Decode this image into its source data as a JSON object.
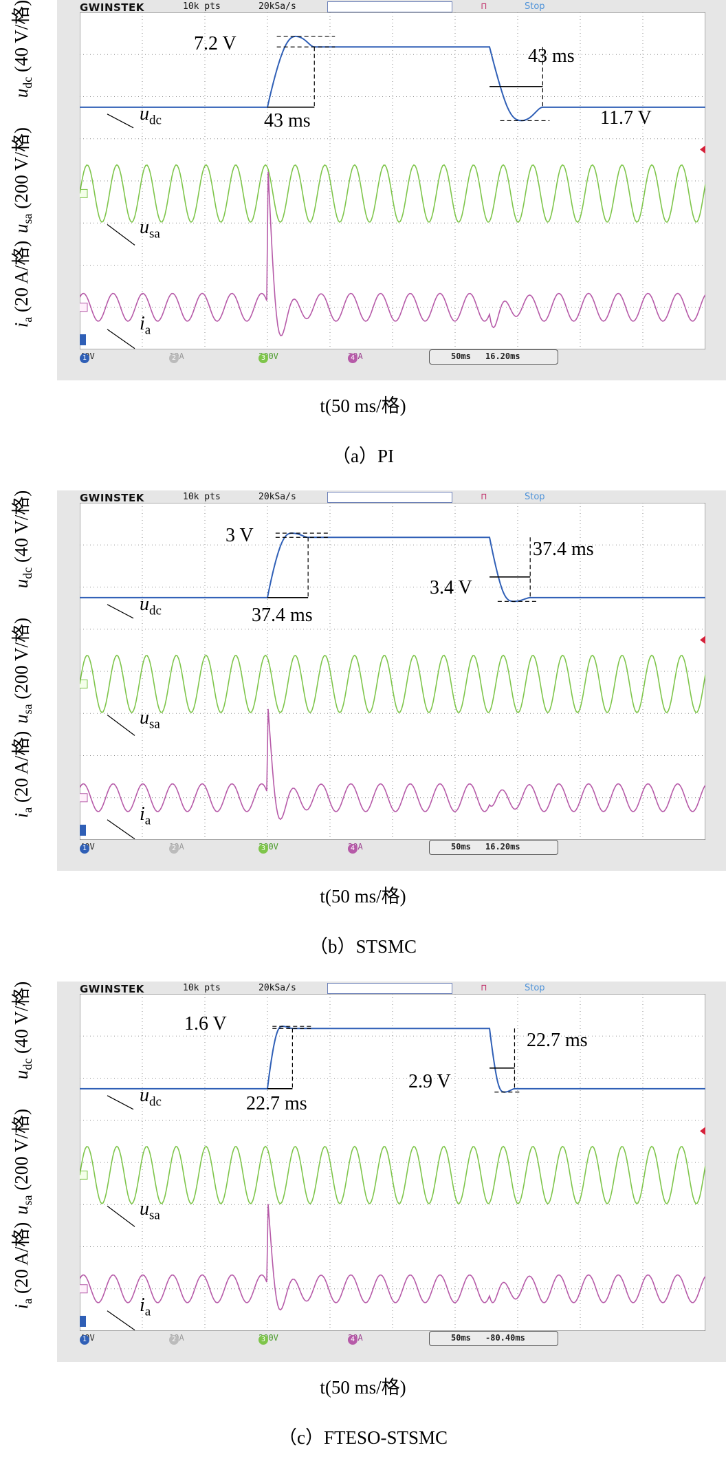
{
  "scope": {
    "brand": "GWINSTEK",
    "record_length": "10k pts",
    "sample_rate": "20kSa/s",
    "stop_label": "Stop",
    "ch1": "40V",
    "ch2": "10A",
    "ch3": "200V",
    "ch4": "20A",
    "timebase": "50ms",
    "channel_colors": {
      "udc": "#2f5fb6",
      "usa": "#7ec54a",
      "ia": "#b65aa8",
      "stop": "#4f93d9"
    }
  },
  "axis": {
    "ylabel_udc": "u",
    "ylabel_udc_sub": "dc",
    "ylabel_udc_unit": "(40 V/格)",
    "ylabel_usa": "u",
    "ylabel_usa_sub": "sa",
    "ylabel_usa_unit": "(200 V/格)",
    "ylabel_ia": "i",
    "ylabel_ia_sub": "a",
    "ylabel_ia_unit": "(20 A/格)",
    "xlabel": "t(50 ms/格)"
  },
  "trace_labels": {
    "udc": "u",
    "udc_sub": "dc",
    "usa": "u",
    "usa_sub": "sa",
    "ia": "i",
    "ia_sub": "a"
  },
  "chart_data": [
    {
      "type": "line",
      "caption": "（a）PI",
      "trigger_offset": "16.20ms",
      "rise_time": "43 ms",
      "overshoot": "7.2 V",
      "fall_time": "43 ms",
      "undershoot": "11.7 V",
      "ia_peak_div": 3.4,
      "ia_dip_div": 1.1
    },
    {
      "type": "line",
      "caption": "（b）STSMC",
      "trigger_offset": "16.20ms",
      "rise_time": "37.4 ms",
      "overshoot": "3 V",
      "fall_time": "37.4 ms",
      "undershoot": "3.4 V",
      "ia_peak_div": 2.2,
      "ia_dip_div": 0.5
    },
    {
      "type": "line",
      "caption": "（c）FTESO-STSMC",
      "trigger_offset": "-80.40ms",
      "rise_time": "22.7 ms",
      "overshoot": "1.6 V",
      "fall_time": "22.7 ms",
      "undershoot": "2.9 V",
      "ia_peak_div": 2.1,
      "ia_dip_div": 0.8
    }
  ]
}
